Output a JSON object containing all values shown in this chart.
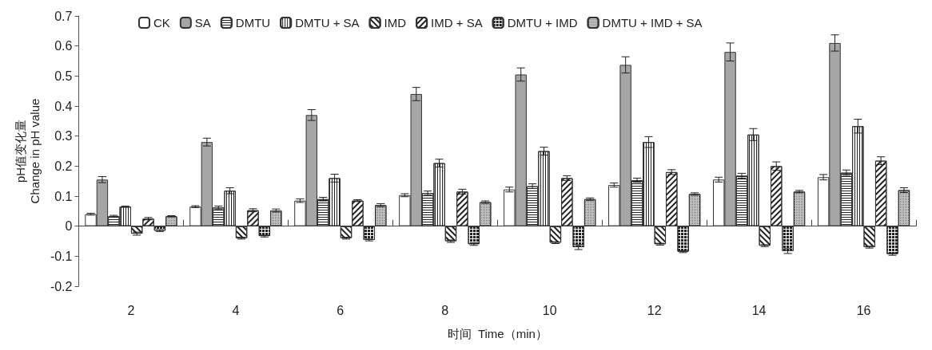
{
  "chart_data": {
    "type": "bar",
    "xlabel": "时间  Time（min）",
    "ylabel": "pH值变化量\nChange in pH value",
    "categories": [
      "2",
      "4",
      "6",
      "8",
      "10",
      "12",
      "14",
      "16"
    ],
    "series": [
      {
        "name": "CK",
        "color": "#ffffff",
        "values": [
          0.04,
          0.065,
          0.085,
          0.103,
          0.122,
          0.137,
          0.155,
          0.163
        ],
        "errors": [
          0.003,
          0.003,
          0.006,
          0.005,
          0.008,
          0.007,
          0.008,
          0.009
        ]
      },
      {
        "name": "SA",
        "color": "#a6a6a6",
        "values": [
          0.155,
          0.28,
          0.37,
          0.44,
          0.505,
          0.537,
          0.58,
          0.61
        ],
        "errors": [
          0.01,
          0.013,
          0.018,
          0.022,
          0.022,
          0.027,
          0.03,
          0.027
        ]
      },
      {
        "name": "DMTU",
        "color": "#ffffff",
        "values": [
          0.033,
          0.062,
          0.09,
          0.11,
          0.133,
          0.153,
          0.168,
          0.178
        ],
        "errors": [
          0.003,
          0.005,
          0.006,
          0.007,
          0.008,
          0.007,
          0.008,
          0.009
        ]
      },
      {
        "name": "DMTU + SA",
        "color": "#ffffff",
        "values": [
          0.065,
          0.118,
          0.16,
          0.21,
          0.25,
          0.28,
          0.305,
          0.333
        ],
        "errors": [
          0.002,
          0.01,
          0.013,
          0.013,
          0.013,
          0.018,
          0.02,
          0.023
        ]
      },
      {
        "name": "IMD",
        "color": "#ffffff",
        "values": [
          -0.025,
          -0.04,
          -0.04,
          -0.05,
          -0.055,
          -0.06,
          -0.065,
          -0.07
        ],
        "errors": [
          0.005,
          0.003,
          0.003,
          0.004,
          0.003,
          0.003,
          0.003,
          0.003
        ]
      },
      {
        "name": "IMD + SA",
        "color": "#ffffff",
        "values": [
          0.025,
          0.053,
          0.085,
          0.115,
          0.16,
          0.18,
          0.2,
          0.218
        ],
        "errors": [
          0.004,
          0.005,
          0.003,
          0.008,
          0.008,
          0.008,
          0.014,
          0.013
        ]
      },
      {
        "name": "DMTU + IMD",
        "color": "#ffffff",
        "values": [
          -0.015,
          -0.033,
          -0.046,
          -0.06,
          -0.07,
          -0.085,
          -0.083,
          -0.093
        ],
        "errors": [
          0.003,
          0.003,
          0.003,
          0.004,
          0.008,
          0.003,
          0.008,
          0.004
        ]
      },
      {
        "name": "DMTU + IMD + SA",
        "color": "#cccccc",
        "values": [
          0.033,
          0.052,
          0.07,
          0.08,
          0.09,
          0.107,
          0.115,
          0.12
        ],
        "errors": [
          0.002,
          0.005,
          0.005,
          0.004,
          0.004,
          0.004,
          0.004,
          0.008
        ]
      }
    ],
    "ylim": [
      -0.2,
      0.7
    ],
    "yticks": [
      -0.2,
      -0.1,
      0,
      0.1,
      0.2,
      0.3,
      0.4,
      0.5,
      0.6,
      0.7
    ],
    "legend": "top left"
  }
}
